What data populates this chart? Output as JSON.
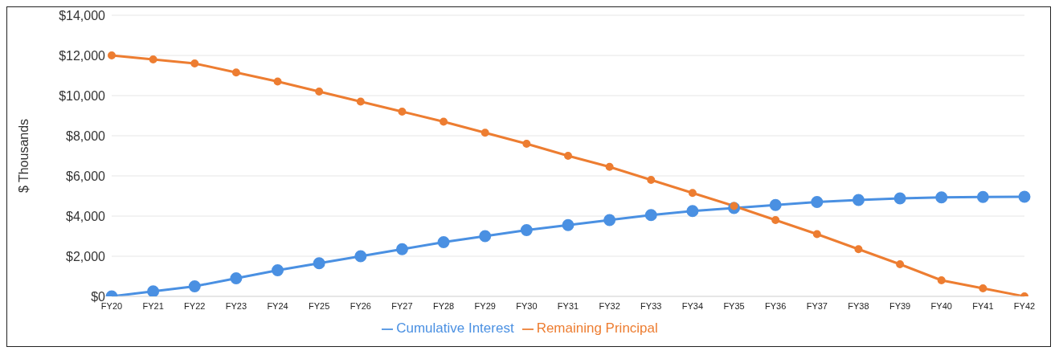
{
  "chart_data": {
    "type": "line",
    "ylabel": "$ Thousands",
    "categories": [
      "FY20",
      "FY21",
      "FY22",
      "FY23",
      "FY24",
      "FY25",
      "FY26",
      "FY27",
      "FY28",
      "FY29",
      "FY30",
      "FY31",
      "FY32",
      "FY33",
      "FY34",
      "FY35",
      "FY36",
      "FY37",
      "FY38",
      "FY39",
      "FY40",
      "FY41",
      "FY42"
    ],
    "series": [
      {
        "name": "Cumulative Interest",
        "color": "#4a90e2",
        "values": [
          0,
          250,
          500,
          900,
          1300,
          1650,
          2000,
          2350,
          2700,
          3000,
          3300,
          3550,
          3800,
          4050,
          4250,
          4400,
          4550,
          4700,
          4800,
          4880,
          4930,
          4950,
          4960
        ]
      },
      {
        "name": "Remaining Principal",
        "color": "#ed7d31",
        "values": [
          12000,
          11800,
          11600,
          11150,
          10700,
          10200,
          9700,
          9200,
          8700,
          8150,
          7600,
          7000,
          6450,
          5800,
          5150,
          4500,
          3800,
          3100,
          2350,
          1600,
          800,
          400,
          0
        ]
      }
    ],
    "ylim": [
      0,
      14000
    ],
    "yticks": [
      {
        "value": 0,
        "label": "$0"
      },
      {
        "value": 2000,
        "label": "$2,000"
      },
      {
        "value": 4000,
        "label": "$4,000"
      },
      {
        "value": 6000,
        "label": "$6,000"
      },
      {
        "value": 8000,
        "label": "$8,000"
      },
      {
        "value": 10000,
        "label": "$10,000"
      },
      {
        "value": 12000,
        "label": "$12,000"
      },
      {
        "value": 14000,
        "label": "$14,000"
      }
    ],
    "grid": "y",
    "legend": "bottom",
    "marker": "circle",
    "line_style": "solid"
  }
}
